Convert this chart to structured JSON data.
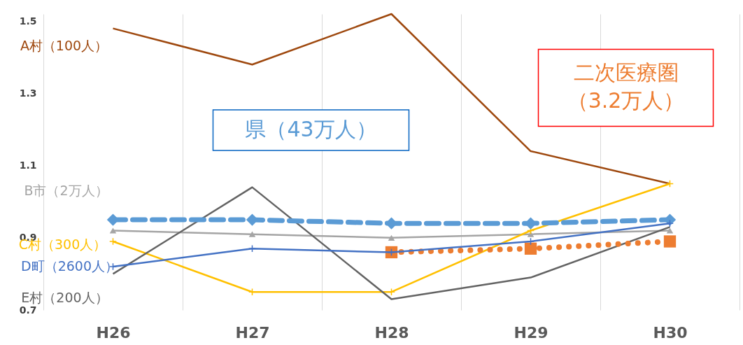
{
  "chart_data": {
    "type": "line",
    "categories": [
      "H26",
      "H27",
      "H28",
      "H29",
      "H30"
    ],
    "ylim": [
      0.7,
      1.52
    ],
    "yticks": [
      0.7,
      0.9,
      1.1,
      1.3,
      1.5
    ],
    "grid": "x",
    "series": [
      {
        "name": "A村（100人）",
        "color": "#9e480e",
        "marker": "none",
        "line_style": "solid",
        "values": [
          1.48,
          1.38,
          1.52,
          1.14,
          1.05
        ]
      },
      {
        "name": "B市（2万人）",
        "color": "#a5a5a5",
        "marker": "triangle",
        "line_style": "solid",
        "values": [
          0.92,
          0.91,
          0.9,
          0.91,
          0.92
        ]
      },
      {
        "name": "C村（300人）",
        "color": "#ffc000",
        "marker": "cross",
        "line_style": "solid",
        "values": [
          0.89,
          0.75,
          0.75,
          0.92,
          1.05
        ]
      },
      {
        "name": "E村（200人）",
        "color": "#636363",
        "marker": "none",
        "line_style": "solid",
        "values": [
          0.8,
          1.04,
          0.73,
          0.79,
          0.93
        ]
      },
      {
        "name": "県（43万人）",
        "color": "#5b9bd5",
        "marker": "diamond",
        "line_style": "dashed",
        "values": [
          0.95,
          0.95,
          0.94,
          0.94,
          0.95
        ]
      },
      {
        "name": "二次医療圏（3.2万人）",
        "color": "#ed7d31",
        "marker": "square",
        "line_style": "dotted",
        "values": [
          null,
          null,
          0.86,
          0.87,
          0.89
        ]
      },
      {
        "name": "D町（2600人）",
        "color": "#4472c4",
        "marker": "cross",
        "line_style": "solid",
        "values": [
          0.82,
          0.87,
          0.86,
          0.89,
          0.94
        ]
      }
    ]
  }
}
